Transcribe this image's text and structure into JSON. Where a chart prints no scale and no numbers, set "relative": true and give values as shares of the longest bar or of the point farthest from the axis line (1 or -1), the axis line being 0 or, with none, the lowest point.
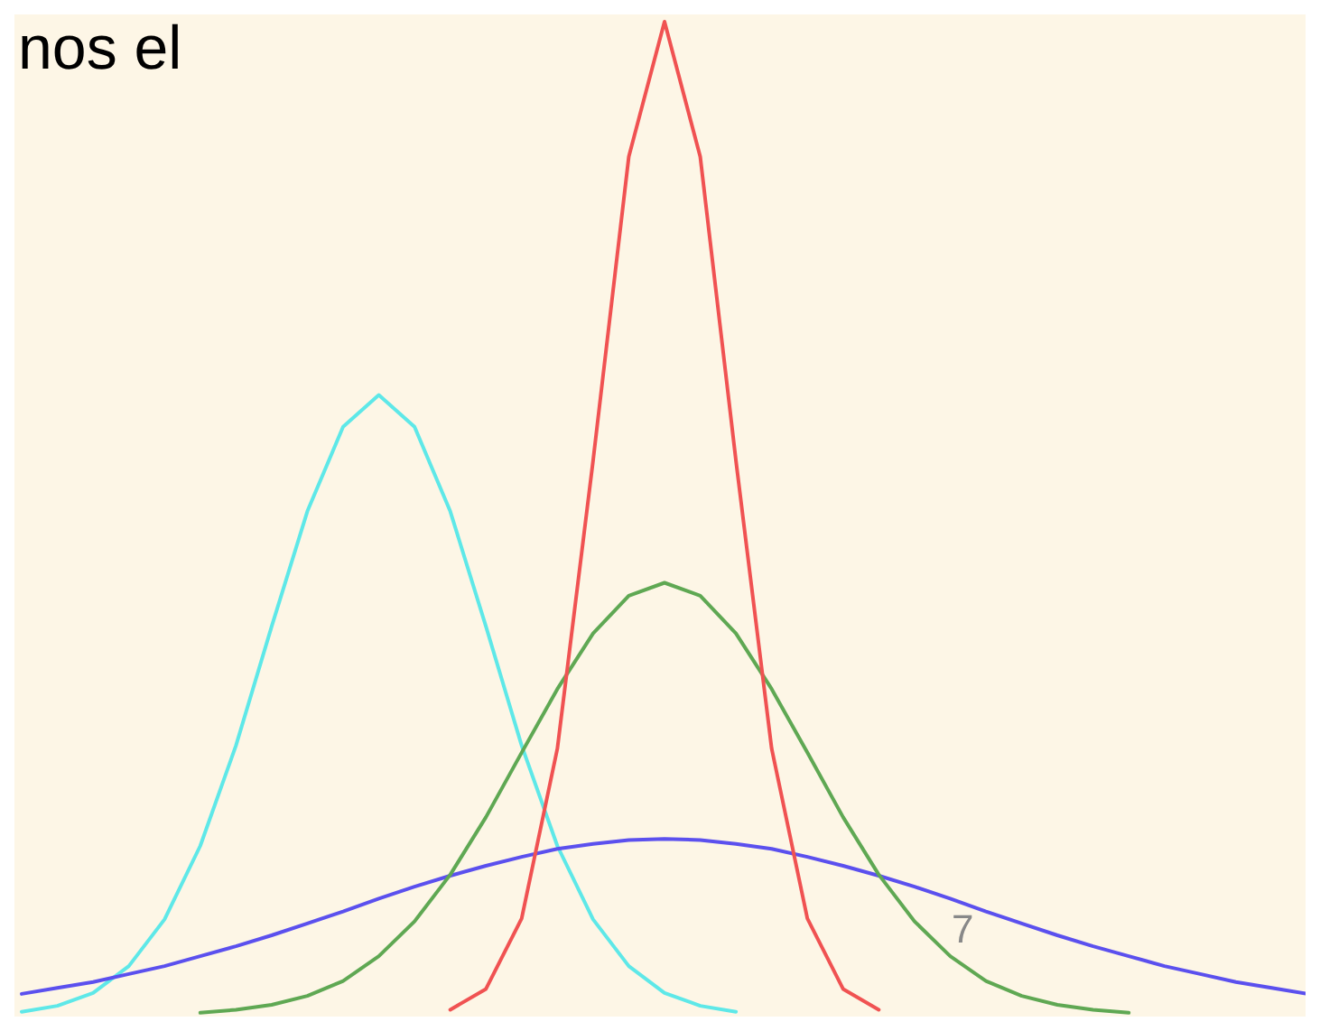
{
  "chart_data": {
    "type": "line",
    "relative": true,
    "marker": "none",
    "line_style": "solid",
    "categories": [
      null,
      null,
      null,
      null,
      null,
      null,
      null,
      null,
      null,
      null,
      null,
      null,
      null,
      null,
      null,
      null,
      null,
      null,
      null,
      null,
      null,
      null,
      null,
      null,
      null,
      null,
      null,
      null,
      null,
      null,
      null,
      null,
      null,
      null,
      null,
      null,
      null
    ],
    "annotations": [
      "nos el",
      "7"
    ],
    "series": [
      {
        "color": "#5ee8e8",
        "values": [
          0.003,
          0.009,
          0.022,
          0.049,
          0.096,
          0.17,
          0.271,
          0.391,
          0.507,
          0.592,
          0.624,
          0.592,
          0.507,
          0.391,
          0.271,
          0.17,
          0.096,
          0.049,
          0.022,
          0.009,
          0.003,
          null,
          null,
          null,
          null,
          null,
          null,
          null,
          null,
          null,
          null,
          null,
          null,
          null,
          null,
          null,
          null
        ]
      },
      {
        "color": "#5b50ee",
        "values": [
          0.021,
          0.027,
          0.033,
          0.041,
          0.049,
          0.059,
          0.069,
          0.08,
          0.092,
          0.104,
          0.117,
          0.129,
          0.14,
          0.15,
          0.159,
          0.167,
          0.172,
          0.176,
          0.177,
          0.176,
          0.172,
          0.167,
          0.159,
          0.15,
          0.14,
          0.129,
          0.117,
          0.104,
          0.092,
          0.08,
          0.069,
          0.059,
          0.049,
          0.041,
          0.033,
          0.027,
          0.021
        ]
      },
      {
        "color": "#5fa853",
        "values": [
          null,
          null,
          null,
          null,
          null,
          0.002,
          0.005,
          0.01,
          0.019,
          0.034,
          0.059,
          0.094,
          0.141,
          0.199,
          0.264,
          0.328,
          0.384,
          0.422,
          0.435,
          0.422,
          0.384,
          0.328,
          0.264,
          0.199,
          0.141,
          0.094,
          0.059,
          0.034,
          0.019,
          0.01,
          0.005,
          0.002,
          null,
          null,
          null,
          null,
          null
        ]
      },
      {
        "color": "#f05252",
        "values": [
          null,
          null,
          null,
          null,
          null,
          null,
          null,
          null,
          null,
          null,
          null,
          null,
          0.005,
          0.026,
          0.097,
          0.268,
          0.558,
          0.864,
          1,
          0.864,
          0.558,
          0.268,
          0.097,
          0.026,
          0.005,
          null,
          null,
          null,
          null,
          null,
          null,
          null,
          null,
          null,
          null,
          null,
          null
        ]
      }
    ]
  }
}
